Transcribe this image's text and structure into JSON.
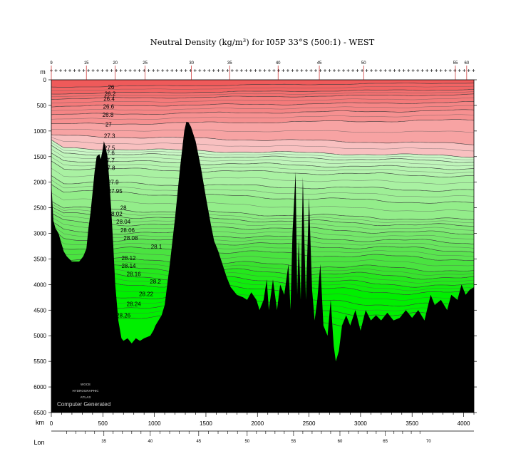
{
  "title": "Neutral Density (kg/m³) for I05P 33°S (500:1) - WEST",
  "chart_data": {
    "type": "contour-section",
    "title": "Neutral Density (kg/m³) for I05P 33°S (500:1) - WEST",
    "y_axis": {
      "label": "m",
      "range": [
        0,
        6500
      ],
      "ticks": [
        "0",
        "500",
        "1000",
        "1500",
        "2000",
        "2500",
        "3000",
        "3500",
        "4000",
        "4500",
        "5000",
        "5500",
        "6000",
        "6500"
      ]
    },
    "x_axis_km": {
      "label": "km",
      "range": [
        0,
        4100
      ],
      "ticks": [
        "0",
        "500",
        "1000",
        "1500",
        "2000",
        "2500",
        "3000",
        "3500",
        "4000"
      ]
    },
    "x_axis_lon": {
      "label": "Lon",
      "ticks": [
        "35",
        "40",
        "45",
        "50",
        "55",
        "60",
        "65",
        "70"
      ],
      "lon_at_km": [
        [
          35,
          510
        ],
        [
          40,
          960
        ],
        [
          45,
          1430
        ],
        [
          50,
          1900
        ],
        [
          55,
          2350
        ],
        [
          60,
          2800
        ],
        [
          65,
          3240
        ],
        [
          70,
          3660
        ]
      ]
    },
    "station_numbers": [
      "9",
      "15",
      "20",
      "25",
      "30",
      "35",
      "40",
      "45",
      "50",
      "55",
      "60"
    ],
    "station_km": [
      0,
      340,
      620,
      910,
      1360,
      1730,
      2200,
      2600,
      3030,
      3920,
      4030
    ],
    "contour_labels": [
      "26",
      "26.2",
      "26.4",
      "26.6",
      "26.8",
      "27",
      "27.3",
      "27.5",
      "27.6",
      "27.7",
      "27.8",
      "27.9",
      "27.95",
      "28",
      "28.02",
      "28.04",
      "28.06",
      "28.08",
      "28.1",
      "28.12",
      "28.14",
      "28.16",
      "28.2",
      "28.22",
      "28.24",
      "28.26"
    ],
    "contour_label_depths_m": [
      140,
      270,
      370,
      520,
      680,
      870,
      1090,
      1330,
      1430,
      1570,
      1720,
      2000,
      2170,
      2500,
      2620,
      2770,
      2940,
      3090,
      3260,
      3480,
      3630,
      3790,
      3940,
      4180,
      4380,
      4600
    ],
    "colors": {
      "surface_red": "#ef5a5a",
      "mid_pink": "#f49c9c",
      "light_pink": "#f8c0c0",
      "pale_green": "#caf7c6",
      "mid_green": "#8ef186",
      "deep_green": "#00ef00",
      "bathymetry": "#000000"
    }
  },
  "watermark": {
    "lines": [
      "WOCE",
      "HYDROGRAPHIC",
      "ATLAS"
    ],
    "credit": "Computer Generated"
  }
}
